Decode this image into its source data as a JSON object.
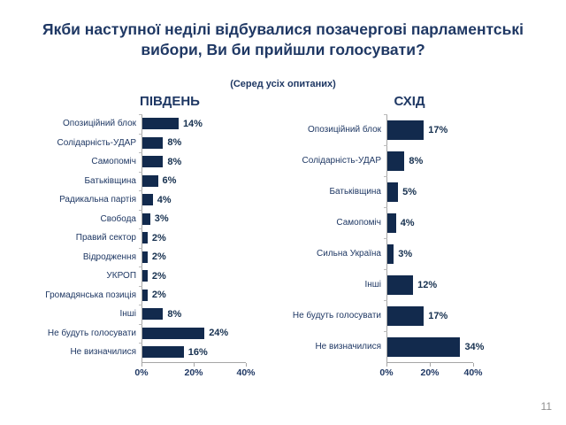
{
  "slide": {
    "title_line1": "Якби наступної неділі відбувалися позачергові парламентські",
    "title_line2": "вибори, Ви би прийшли голосувати?",
    "subtitle": "(Серед усіх опитаних)",
    "page_number": "11"
  },
  "colors": {
    "bar": "#122A4D",
    "heading_text": "#1F3864",
    "value_text": "#16304F",
    "axis_line": "#A6A6A6",
    "page_number_text": "#8F8F8F"
  },
  "chart_data": [
    {
      "type": "bar",
      "orientation": "horizontal",
      "title": "ПІВДЕНЬ",
      "categories": [
        "Опозиційний блок",
        "Солідарність-УДАР",
        "Самопоміч",
        "Батьківщина",
        "Радикальна партія",
        "Свобода",
        "Правий сектор",
        "Відродження",
        "УКРОП",
        "Громадянська позиція",
        "Інші",
        "Не будуть голосувати",
        "Не визначилися"
      ],
      "values": [
        14,
        8,
        8,
        6,
        4,
        3,
        2,
        2,
        2,
        2,
        8,
        24,
        16
      ],
      "value_labels": [
        "14%",
        "8%",
        "8%",
        "6%",
        "4%",
        "3%",
        "2%",
        "2%",
        "2%",
        "2%",
        "8%",
        "24%",
        "16%"
      ],
      "xlabel": "",
      "ylabel": "",
      "xlim": [
        0,
        40
      ],
      "xticks": [
        "0%",
        "20%",
        "40%"
      ],
      "grid": false,
      "legend": false
    },
    {
      "type": "bar",
      "orientation": "horizontal",
      "title": "СХІД",
      "categories": [
        "Опозиційний блок",
        "Солідарність-УДАР",
        "Батьківщина",
        "Самопоміч",
        "Сильна Україна",
        "Інші",
        "Не будуть голосувати",
        "Не визначилися"
      ],
      "values": [
        17,
        8,
        5,
        4,
        3,
        12,
        17,
        34
      ],
      "value_labels": [
        "17%",
        "8%",
        "5%",
        "4%",
        "3%",
        "12%",
        "17%",
        "34%"
      ],
      "xlabel": "",
      "ylabel": "",
      "xlim": [
        0,
        40
      ],
      "xticks": [
        "0%",
        "20%",
        "40%"
      ],
      "grid": false,
      "legend": false
    }
  ]
}
